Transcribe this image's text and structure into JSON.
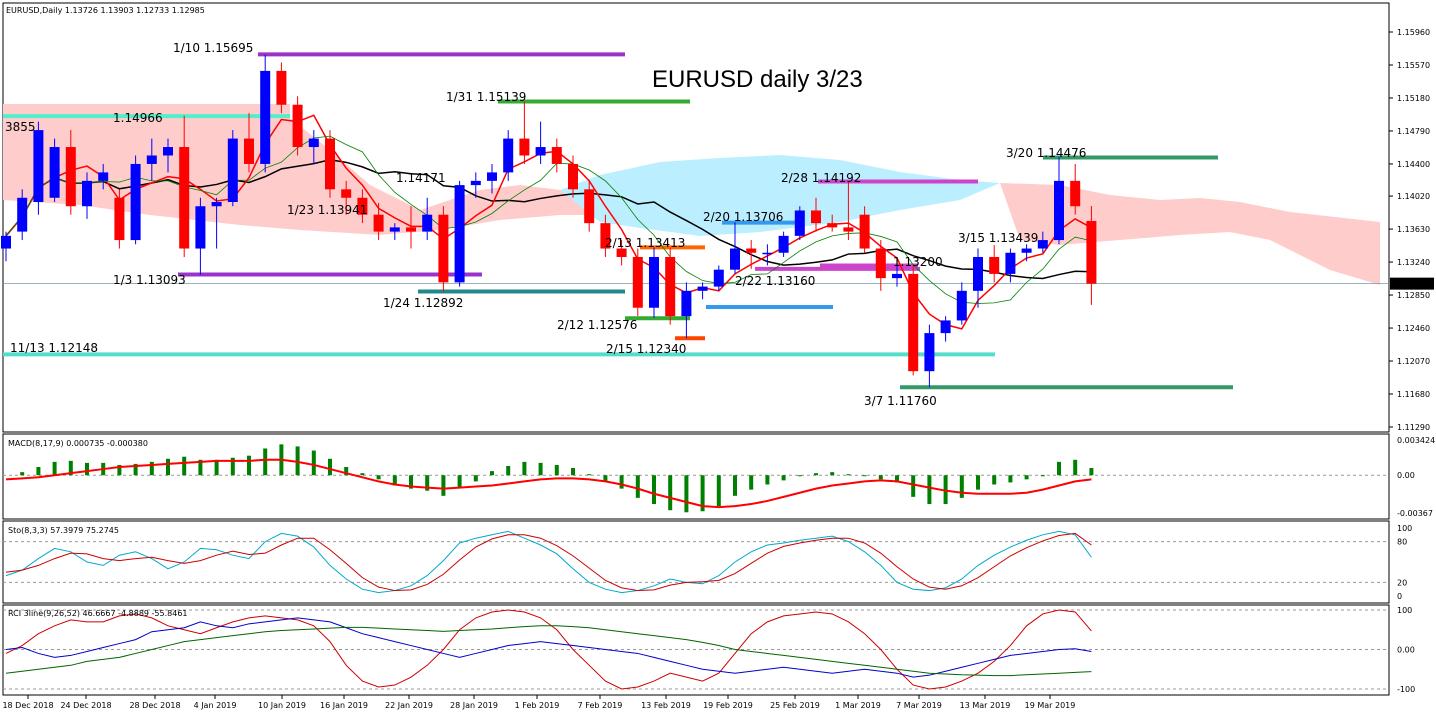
{
  "header": {
    "symbol_line": "EURUSD,Daily  1.13726 1.13903 1.12733 1.12985",
    "chart_title": "EURUSD daily 3/23"
  },
  "price_axis": {
    "ticks": [
      "1.15960",
      "1.15570",
      "1.15180",
      "1.14790",
      "1.14400",
      "1.14020",
      "1.13630",
      "1.13240",
      "1.12850",
      "1.12460",
      "1.12070",
      "1.11680",
      "1.11290"
    ],
    "current_price": "1.12985"
  },
  "date_axis": [
    "18 Dec 2018",
    "24 Dec 2018",
    "28 Dec 2018",
    "4 Jan 2019",
    "10 Jan 2019",
    "16 Jan 2019",
    "22 Jan 2019",
    "28 Jan 2019",
    "1 Feb 2019",
    "7 Feb 2019",
    "13 Feb 2019",
    "19 Feb 2019",
    "25 Feb 2019",
    "1 Mar 2019",
    "7 Mar 2019",
    "13 Mar 2019",
    "19 Mar 2019"
  ],
  "annotations": [
    {
      "text": "1/10 1.15695"
    },
    {
      "text": "1/31 1.15139"
    },
    {
      "text": "1.14966"
    },
    {
      "text": "3855"
    },
    {
      "text": "1.14171"
    },
    {
      "text": "1/23 1.13941"
    },
    {
      "text": "1/3 1.13093"
    },
    {
      "text": "1/24 1.12892"
    },
    {
      "text": "2/13 1.13413"
    },
    {
      "text": "2/12 1.12576"
    },
    {
      "text": "2/15 1.12340"
    },
    {
      "text": "2/20 1.13706"
    },
    {
      "text": "2/22 1.13160"
    },
    {
      "text": "2/28 1.14192"
    },
    {
      "text": "1.13200"
    },
    {
      "text": "3/15 1.13439"
    },
    {
      "text": "3/20 1.14476"
    },
    {
      "text": "3/7 1.11760"
    },
    {
      "text": "11/13 1.12148"
    }
  ],
  "panels": {
    "macd": {
      "label": "MACD(8,17,9) 0.000735 -0.000380",
      "ticks": [
        "0.003424",
        "0.00",
        "-0.00367"
      ]
    },
    "sto": {
      "label": "Sto(8,3,3) 57.3979 75.2745",
      "ticks": [
        "100",
        "80",
        "20",
        "0"
      ]
    },
    "rci": {
      "label": "RCI 3line(9,26,52) 46.6667 -4.8889 -55.8461",
      "ticks": [
        "100",
        "0.00",
        "-100"
      ]
    }
  },
  "colors": {
    "bull": "#0000ff",
    "bear": "#ff0000",
    "tenkan": "#ff0000",
    "kijun": "#000000",
    "chikou": "#008000",
    "kumo_bear": "#ffcccc",
    "kumo_bull": "#bbeeff",
    "macd_hist": "#008000",
    "macd_signal": "#ff0000",
    "sto_k": "#00aacc",
    "sto_d": "#cc0000",
    "rci_short": "#cc0000",
    "rci_mid": "#0000cc",
    "rci_long": "#006600"
  },
  "chart_data": {
    "type": "candlestick",
    "symbol": "EURUSD",
    "timeframe": "Daily",
    "last_ohlc": {
      "open": 1.13726,
      "high": 1.13903,
      "low": 1.12733,
      "close": 1.12985
    },
    "ylim": [
      1.1129,
      1.1596
    ],
    "candles": [
      {
        "o": 1.134,
        "h": 1.136,
        "l": 1.1325,
        "c": 1.1355
      },
      {
        "o": 1.136,
        "h": 1.141,
        "l": 1.135,
        "c": 1.14
      },
      {
        "o": 1.1395,
        "h": 1.149,
        "l": 1.138,
        "c": 1.148
      },
      {
        "o": 1.14,
        "h": 1.147,
        "l": 1.1395,
        "c": 1.146
      },
      {
        "o": 1.146,
        "h": 1.148,
        "l": 1.138,
        "c": 1.139
      },
      {
        "o": 1.139,
        "h": 1.143,
        "l": 1.1375,
        "c": 1.142
      },
      {
        "o": 1.142,
        "h": 1.144,
        "l": 1.141,
        "c": 1.143
      },
      {
        "o": 1.14,
        "h": 1.141,
        "l": 1.134,
        "c": 1.135
      },
      {
        "o": 1.135,
        "h": 1.145,
        "l": 1.1345,
        "c": 1.144
      },
      {
        "o": 1.144,
        "h": 1.147,
        "l": 1.142,
        "c": 1.145
      },
      {
        "o": 1.145,
        "h": 1.147,
        "l": 1.143,
        "c": 1.146
      },
      {
        "o": 1.146,
        "h": 1.1497,
        "l": 1.133,
        "c": 1.134
      },
      {
        "o": 1.134,
        "h": 1.14,
        "l": 1.1309,
        "c": 1.139
      },
      {
        "o": 1.139,
        "h": 1.14,
        "l": 1.134,
        "c": 1.1395
      },
      {
        "o": 1.1395,
        "h": 1.148,
        "l": 1.139,
        "c": 1.147
      },
      {
        "o": 1.147,
        "h": 1.15,
        "l": 1.143,
        "c": 1.144
      },
      {
        "o": 1.144,
        "h": 1.1569,
        "l": 1.143,
        "c": 1.155
      },
      {
        "o": 1.155,
        "h": 1.156,
        "l": 1.15,
        "c": 1.151
      },
      {
        "o": 1.151,
        "h": 1.152,
        "l": 1.145,
        "c": 1.146
      },
      {
        "o": 1.146,
        "h": 1.148,
        "l": 1.144,
        "c": 1.147
      },
      {
        "o": 1.147,
        "h": 1.148,
        "l": 1.14,
        "c": 1.141
      },
      {
        "o": 1.141,
        "h": 1.142,
        "l": 1.138,
        "c": 1.14
      },
      {
        "o": 1.14,
        "h": 1.141,
        "l": 1.137,
        "c": 1.138
      },
      {
        "o": 1.138,
        "h": 1.1394,
        "l": 1.135,
        "c": 1.136
      },
      {
        "o": 1.136,
        "h": 1.137,
        "l": 1.135,
        "c": 1.1365
      },
      {
        "o": 1.1365,
        "h": 1.139,
        "l": 1.134,
        "c": 1.136
      },
      {
        "o": 1.136,
        "h": 1.14,
        "l": 1.135,
        "c": 1.138
      },
      {
        "o": 1.138,
        "h": 1.139,
        "l": 1.1289,
        "c": 1.13
      },
      {
        "o": 1.13,
        "h": 1.142,
        "l": 1.1295,
        "c": 1.1415
      },
      {
        "o": 1.1415,
        "h": 1.143,
        "l": 1.14,
        "c": 1.142
      },
      {
        "o": 1.142,
        "h": 1.144,
        "l": 1.1405,
        "c": 1.143
      },
      {
        "o": 1.143,
        "h": 1.148,
        "l": 1.142,
        "c": 1.147
      },
      {
        "o": 1.147,
        "h": 1.1514,
        "l": 1.144,
        "c": 1.145
      },
      {
        "o": 1.145,
        "h": 1.149,
        "l": 1.144,
        "c": 1.146
      },
      {
        "o": 1.146,
        "h": 1.147,
        "l": 1.143,
        "c": 1.144
      },
      {
        "o": 1.144,
        "h": 1.145,
        "l": 1.14,
        "c": 1.141
      },
      {
        "o": 1.141,
        "h": 1.142,
        "l": 1.136,
        "c": 1.137
      },
      {
        "o": 1.137,
        "h": 1.138,
        "l": 1.133,
        "c": 1.134
      },
      {
        "o": 1.134,
        "h": 1.135,
        "l": 1.132,
        "c": 1.133
      },
      {
        "o": 1.133,
        "h": 1.134,
        "l": 1.126,
        "c": 1.127
      },
      {
        "o": 1.127,
        "h": 1.1341,
        "l": 1.1258,
        "c": 1.133
      },
      {
        "o": 1.133,
        "h": 1.1341,
        "l": 1.125,
        "c": 1.126
      },
      {
        "o": 1.126,
        "h": 1.13,
        "l": 1.1234,
        "c": 1.129
      },
      {
        "o": 1.129,
        "h": 1.13,
        "l": 1.128,
        "c": 1.1295
      },
      {
        "o": 1.1295,
        "h": 1.132,
        "l": 1.129,
        "c": 1.1315
      },
      {
        "o": 1.1315,
        "h": 1.1371,
        "l": 1.131,
        "c": 1.134
      },
      {
        "o": 1.134,
        "h": 1.135,
        "l": 1.1316,
        "c": 1.1335
      },
      {
        "o": 1.1335,
        "h": 1.1345,
        "l": 1.132,
        "c": 1.1335
      },
      {
        "o": 1.1335,
        "h": 1.136,
        "l": 1.133,
        "c": 1.1355
      },
      {
        "o": 1.1355,
        "h": 1.139,
        "l": 1.135,
        "c": 1.1385
      },
      {
        "o": 1.1385,
        "h": 1.14,
        "l": 1.136,
        "c": 1.137
      },
      {
        "o": 1.137,
        "h": 1.138,
        "l": 1.136,
        "c": 1.1365
      },
      {
        "o": 1.1365,
        "h": 1.1419,
        "l": 1.135,
        "c": 1.136
      },
      {
        "o": 1.138,
        "h": 1.139,
        "l": 1.1335,
        "c": 1.134
      },
      {
        "o": 1.134,
        "h": 1.135,
        "l": 1.129,
        "c": 1.1305
      },
      {
        "o": 1.1305,
        "h": 1.132,
        "l": 1.1295,
        "c": 1.131
      },
      {
        "o": 1.131,
        "h": 1.132,
        "l": 1.119,
        "c": 1.1195
      },
      {
        "o": 1.1195,
        "h": 1.125,
        "l": 1.1176,
        "c": 1.124
      },
      {
        "o": 1.124,
        "h": 1.126,
        "l": 1.123,
        "c": 1.1255
      },
      {
        "o": 1.1255,
        "h": 1.13,
        "l": 1.125,
        "c": 1.129
      },
      {
        "o": 1.129,
        "h": 1.134,
        "l": 1.127,
        "c": 1.133
      },
      {
        "o": 1.133,
        "h": 1.1344,
        "l": 1.13,
        "c": 1.131
      },
      {
        "o": 1.131,
        "h": 1.134,
        "l": 1.13,
        "c": 1.1335
      },
      {
        "o": 1.1335,
        "h": 1.1345,
        "l": 1.1325,
        "c": 1.134
      },
      {
        "o": 1.134,
        "h": 1.136,
        "l": 1.1335,
        "c": 1.135
      },
      {
        "o": 1.135,
        "h": 1.1448,
        "l": 1.1345,
        "c": 1.142
      },
      {
        "o": 1.142,
        "h": 1.144,
        "l": 1.138,
        "c": 1.139
      },
      {
        "o": 1.13726,
        "h": 1.13903,
        "l": 1.12733,
        "c": 1.12985
      }
    ],
    "levels": [
      {
        "label": "1/10 1.15695",
        "price": 1.15695,
        "color": "#9933cc"
      },
      {
        "label": "1/31 1.15139",
        "price": 1.15139,
        "color": "#33aa33"
      },
      {
        "label": "1.14966",
        "price": 1.14966,
        "color": "#55eecc"
      },
      {
        "label": "1/3 1.13093",
        "price": 1.13093,
        "color": "#9933cc"
      },
      {
        "label": "1/24 1.12892",
        "price": 1.12892,
        "color": "#228888"
      },
      {
        "label": "11/13 1.12148",
        "price": 1.12148,
        "color": "#55ddcc"
      },
      {
        "label": "2/13 1.13413",
        "price": 1.13413,
        "color": "#ff6600"
      },
      {
        "label": "2/12 1.12576",
        "price": 1.12576,
        "color": "#33aa33"
      },
      {
        "label": "2/15 1.12340",
        "price": 1.1234,
        "color": "#ff4400"
      },
      {
        "label": "2/20 1.13706",
        "price": 1.13706,
        "color": "#3399ee"
      },
      {
        "label": "2/22 1.13160",
        "price": 1.1316,
        "color": "#cc44cc"
      },
      {
        "label": "2/28 1.14192",
        "price": 1.14192,
        "color": "#cc44cc"
      },
      {
        "label": "1.13200",
        "price": 1.132,
        "color": "#cc44cc"
      },
      {
        "label": "3/20 1.14476",
        "price": 1.14476,
        "color": "#339966"
      },
      {
        "label": "3/7 1.11760",
        "price": 1.1176,
        "color": "#339966"
      }
    ],
    "macd_hist": [
      0.0,
      0.0003,
      0.0008,
      0.0013,
      0.0014,
      0.0012,
      0.0012,
      0.001,
      0.0011,
      0.0013,
      0.0016,
      0.0018,
      0.0015,
      0.0015,
      0.0017,
      0.0019,
      0.0026,
      0.003,
      0.0028,
      0.0024,
      0.0016,
      0.0008,
      0.0002,
      -0.0004,
      -0.001,
      -0.0013,
      -0.0015,
      -0.002,
      -0.0012,
      -0.0006,
      0.0004,
      0.0009,
      0.0013,
      0.0012,
      0.001,
      0.0007,
      0.0001,
      -0.0006,
      -0.0013,
      -0.0022,
      -0.0028,
      -0.0034,
      -0.0036,
      -0.0035,
      -0.003,
      -0.002,
      -0.0014,
      -0.0009,
      -0.0005,
      -0.0001,
      0.0002,
      0.0003,
      0.0001,
      -0.0001,
      -0.0004,
      -0.0007,
      -0.0021,
      -0.0028,
      -0.0028,
      -0.0022,
      -0.0014,
      -0.0009,
      -0.0007,
      -0.0004,
      -0.0001,
      0.0013,
      0.0015,
      0.0007
    ],
    "macd_signal": [
      -0.0004,
      -0.0003,
      -0.0002,
      0.0,
      0.0002,
      0.0004,
      0.0006,
      0.0008,
      0.0009,
      0.001,
      0.0011,
      0.0012,
      0.0013,
      0.0014,
      0.0014,
      0.0014,
      0.0015,
      0.0015,
      0.0013,
      0.001,
      0.0006,
      0.0002,
      -0.0002,
      -0.0006,
      -0.0009,
      -0.0011,
      -0.0012,
      -0.0013,
      -0.0012,
      -0.0011,
      -0.001,
      -0.0008,
      -0.0006,
      -0.0004,
      -0.0003,
      -0.0003,
      -0.0004,
      -0.0006,
      -0.0009,
      -0.0013,
      -0.0018,
      -0.0022,
      -0.0026,
      -0.003,
      -0.0031,
      -0.003,
      -0.0028,
      -0.0025,
      -0.0021,
      -0.0017,
      -0.0013,
      -0.001,
      -0.0008,
      -0.0006,
      -0.0005,
      -0.0006,
      -0.0009,
      -0.0012,
      -0.0015,
      -0.0017,
      -0.0018,
      -0.0018,
      -0.0018,
      -0.0017,
      -0.0014,
      -0.001,
      -0.0006,
      -0.0004
    ],
    "sto_k": [
      30,
      38,
      55,
      70,
      65,
      50,
      45,
      60,
      65,
      55,
      40,
      50,
      70,
      68,
      60,
      55,
      80,
      92,
      88,
      72,
      45,
      25,
      10,
      5,
      8,
      15,
      30,
      52,
      78,
      85,
      90,
      95,
      85,
      75,
      62,
      40,
      20,
      10,
      5,
      8,
      15,
      25,
      20,
      18,
      30,
      50,
      65,
      75,
      78,
      82,
      85,
      88,
      80,
      65,
      45,
      20,
      10,
      8,
      12,
      25,
      45,
      60,
      72,
      82,
      90,
      95,
      90,
      57
    ],
    "sto_d": [
      35,
      38,
      45,
      55,
      63,
      62,
      55,
      52,
      55,
      57,
      52,
      48,
      52,
      60,
      66,
      61,
      63,
      75,
      85,
      85,
      68,
      48,
      27,
      13,
      8,
      9,
      17,
      32,
      53,
      72,
      84,
      90,
      90,
      85,
      74,
      59,
      41,
      23,
      12,
      8,
      9,
      16,
      20,
      21,
      23,
      33,
      48,
      63,
      73,
      78,
      82,
      85,
      85,
      78,
      63,
      43,
      25,
      13,
      10,
      15,
      27,
      43,
      59,
      71,
      81,
      89,
      92,
      75
    ],
    "rci_short": [
      -10,
      10,
      40,
      60,
      75,
      70,
      70,
      85,
      90,
      80,
      60,
      50,
      40,
      55,
      70,
      80,
      85,
      80,
      75,
      60,
      20,
      -40,
      -80,
      -95,
      -90,
      -70,
      -40,
      0,
      50,
      80,
      95,
      100,
      95,
      80,
      50,
      0,
      -40,
      -80,
      -100,
      -95,
      -80,
      -60,
      -70,
      -80,
      -60,
      -10,
      40,
      70,
      85,
      90,
      95,
      90,
      70,
      40,
      0,
      -50,
      -90,
      -100,
      -95,
      -80,
      -60,
      -30,
      10,
      60,
      90,
      100,
      95,
      47
    ],
    "rci_mid": [
      0,
      5,
      -10,
      -20,
      -15,
      -5,
      5,
      15,
      25,
      45,
      50,
      55,
      70,
      60,
      55,
      65,
      70,
      75,
      80,
      75,
      70,
      55,
      40,
      30,
      20,
      10,
      0,
      -10,
      -20,
      -10,
      0,
      10,
      15,
      20,
      15,
      10,
      5,
      0,
      -5,
      -10,
      -20,
      -30,
      -40,
      -50,
      -55,
      -60,
      -55,
      -50,
      -45,
      -50,
      -55,
      -60,
      -55,
      -50,
      -55,
      -60,
      -70,
      -65,
      -55,
      -45,
      -35,
      -25,
      -15,
      -10,
      -5,
      0,
      2,
      -5
    ],
    "rci_long": [
      -60,
      -55,
      -50,
      -45,
      -40,
      -30,
      -25,
      -20,
      -10,
      0,
      10,
      20,
      25,
      30,
      35,
      40,
      45,
      48,
      50,
      52,
      54,
      56,
      56,
      54,
      52,
      50,
      48,
      46,
      48,
      50,
      52,
      55,
      58,
      60,
      60,
      58,
      55,
      50,
      45,
      40,
      35,
      30,
      25,
      18,
      10,
      0,
      -5,
      -10,
      -15,
      -20,
      -25,
      -30,
      -35,
      -40,
      -45,
      -50,
      -55,
      -60,
      -62,
      -64,
      -65,
      -66,
      -66,
      -64,
      -62,
      -60,
      -58,
      -56
    ]
  }
}
